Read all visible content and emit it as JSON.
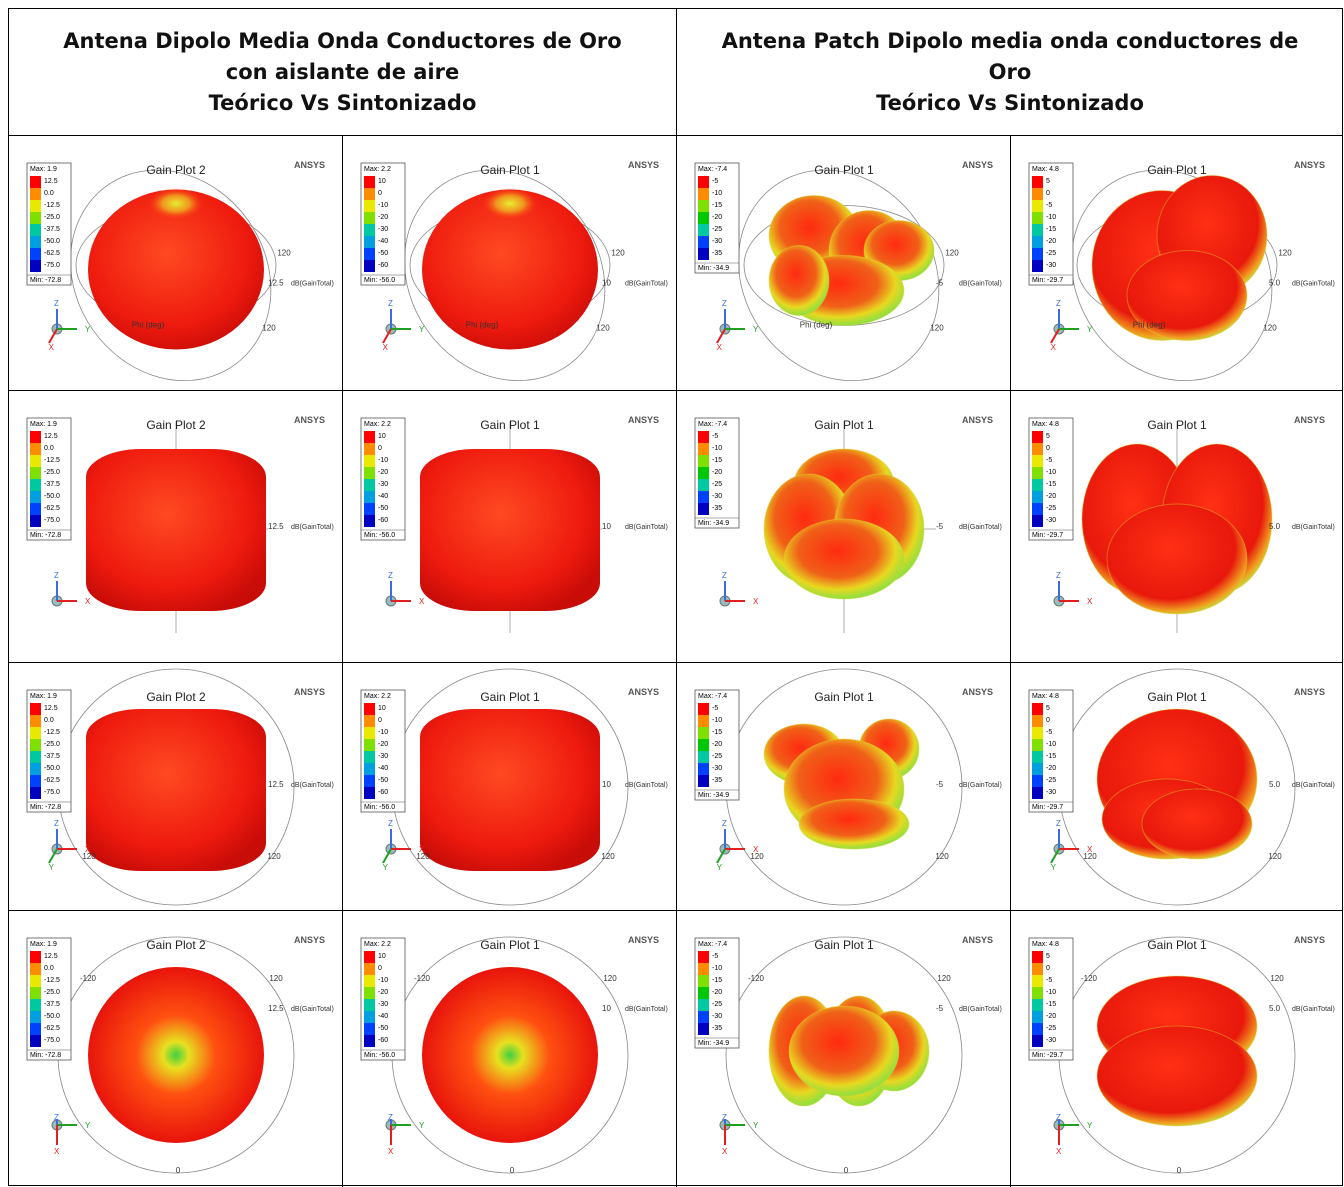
{
  "header": {
    "left": {
      "title": "Antena Dipolo Media Onda Conductores de Oro con aislante de aire",
      "subtitle": "Teórico Vs Sintonizado"
    },
    "right": {
      "title": "Antena Patch Dipolo media onda conductores de Oro",
      "subtitle": "Teórico Vs Sintonizado"
    }
  },
  "plots": [
    {
      "title": "Gain Plot 2",
      "brand": "ANSYS",
      "max": "Max: 1.9",
      "min": "Min: -72.8",
      "legend": [
        "12.5",
        "0.0",
        "-12.5",
        "-25.0",
        "-37.5",
        "-50.0",
        "-62.5",
        "-75.0"
      ],
      "ring": "12.5",
      "unit": "dB(GainTotal)"
    },
    {
      "title": "Gain Plot 1",
      "brand": "ANSYS",
      "max": "Max: 2.2",
      "min": "Min: -56.0",
      "legend": [
        "10",
        "0",
        "-10",
        "-20",
        "-30",
        "-40",
        "-50",
        "-60"
      ],
      "ring": "10",
      "unit": "dB(GainTotal)"
    },
    {
      "title": "Gain Plot 1",
      "brand": "ANSYS",
      "max": "Max: -7.4",
      "min": "Min: -34.9",
      "legend": [
        "-5",
        "-10",
        "-15",
        "-20",
        "-25",
        "-30",
        "-35"
      ],
      "ring": "-5",
      "unit": "dB(GainTotal)"
    },
    {
      "title": "Gain Plot 1",
      "brand": "ANSYS",
      "max": "Max: 4.8",
      "min": "Min: -29.7",
      "legend": [
        "5",
        "0",
        "-5",
        "-10",
        "-15",
        "-20",
        "-25",
        "-30"
      ],
      "ring": "5.0",
      "unit": "dB(GainTotal)"
    }
  ],
  "views": [
    {
      "axes": [
        "Z",
        "Y",
        "X"
      ],
      "labels": [
        "120",
        "120",
        "Phi (deg)"
      ]
    },
    {
      "axes": [
        "Z",
        "X"
      ],
      "labels": []
    },
    {
      "axes": [
        "Z",
        "X",
        "Y"
      ],
      "labels": [
        "120",
        "120"
      ]
    },
    {
      "axes": [
        "Z",
        "Y",
        "X"
      ],
      "labels": [
        "-120",
        "120",
        "0"
      ]
    }
  ]
}
